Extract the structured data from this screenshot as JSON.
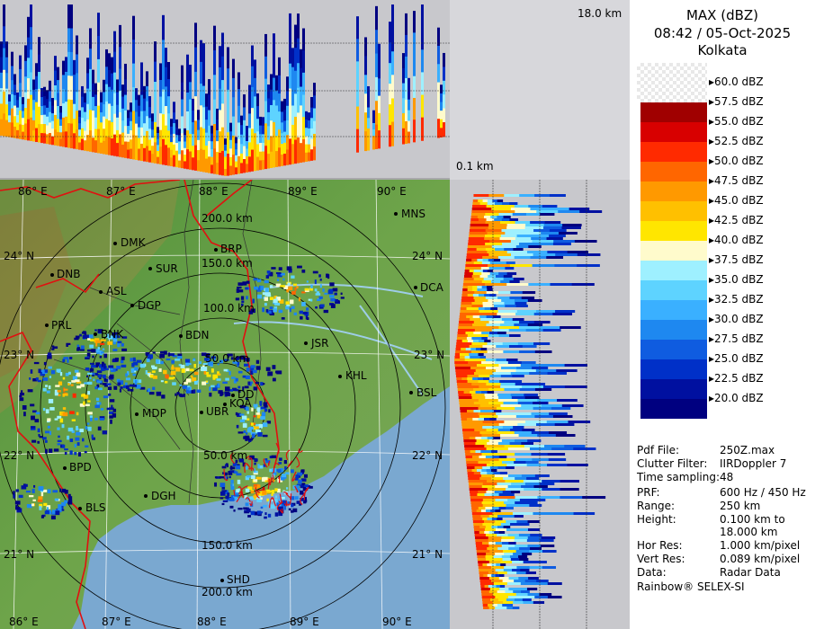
{
  "header": {
    "product": "MAX (dBZ)",
    "datetime": "08:42 / 05-Oct-2025",
    "station": "Kolkata"
  },
  "height_labels": {
    "top": "18.0 km",
    "bottom": "0.1 km"
  },
  "colors": {
    "c60": "#ffffff",
    "c575": "#a00000",
    "c55": "#d80000",
    "c525": "#ff2a00",
    "c50": "#ff6600",
    "c475": "#ff9900",
    "c45": "#ffc000",
    "c425": "#ffe600",
    "c40": "#fffbcc",
    "c375": "#9ef0ff",
    "c35": "#5ed3ff",
    "c325": "#3ab0ff",
    "c30": "#1e88f0",
    "c275": "#0f5ce0",
    "c25": "#0030c8",
    "c225": "#0010a0",
    "c20": "#000080",
    "land": "#5a9a3c",
    "sea": "#6fa0c8",
    "border": "#e01010"
  },
  "scale": [
    {
      "label": "60.0 dBZ",
      "color": "#ffffff"
    },
    {
      "label": "57.5 dBZ",
      "color": "#a00000"
    },
    {
      "label": "55.0 dBZ",
      "color": "#d80000"
    },
    {
      "label": "52.5 dBZ",
      "color": "#ff2a00"
    },
    {
      "label": "50.0 dBZ",
      "color": "#ff6600"
    },
    {
      "label": "47.5 dBZ",
      "color": "#ff9900"
    },
    {
      "label": "45.0 dBZ",
      "color": "#ffc000"
    },
    {
      "label": "42.5 dBZ",
      "color": "#ffe600"
    },
    {
      "label": "40.0 dBZ",
      "color": "#fffbcc"
    },
    {
      "label": "37.5 dBZ",
      "color": "#9ef0ff"
    },
    {
      "label": "35.0 dBZ",
      "color": "#5ed3ff"
    },
    {
      "label": "32.5 dBZ",
      "color": "#3ab0ff"
    },
    {
      "label": "30.0 dBZ",
      "color": "#1e88f0"
    },
    {
      "label": "27.5 dBZ",
      "color": "#0f5ce0"
    },
    {
      "label": "25.0 dBZ",
      "color": "#0030c8"
    },
    {
      "label": "22.5 dBZ",
      "color": "#0010a0"
    },
    {
      "label": "20.0 dBZ",
      "color": "#000080"
    }
  ],
  "info": [
    {
      "key": "Pdf File:",
      "value": "250Z.max"
    },
    {
      "key": "Clutter Filter:",
      "value": "IIRDoppler 7"
    },
    {
      "key": "Time sampling:",
      "value": "48"
    },
    {
      "key": "PRF:",
      "value": "600 Hz / 450 Hz"
    },
    {
      "key": "Range:",
      "value": "250 km"
    },
    {
      "key": "Height:",
      "value": "0.100 km to"
    },
    {
      "key": "",
      "value": "18.000 km"
    },
    {
      "key": "Hor Res:",
      "value": "1.000 km/pixel"
    },
    {
      "key": "Vert Res:",
      "value": "0.089 km/pixel"
    },
    {
      "key": "Data:",
      "value": "Radar Data"
    }
  ],
  "footer": "Rainbow® SELEX-SI",
  "map": {
    "lon_top": [
      "86° E",
      "87° E",
      "88° E",
      "89° E",
      "90° E"
    ],
    "lon_bottom": [
      "86° E",
      "87° E",
      "88° E",
      "89° E",
      "90° E"
    ],
    "lat_left": [
      "24° N",
      "23° N",
      "22° N",
      "21° N"
    ],
    "lat_right": [
      "24° N",
      "23° N",
      "22° N",
      "21° N"
    ],
    "range_rings": [
      "50.0 km",
      "100.0 km",
      "150.0 km",
      "200.0 km"
    ],
    "range_rings_lower": [
      "150.0 km",
      "200.0 km"
    ],
    "stations": [
      {
        "name": "MNS"
      },
      {
        "name": "DMK"
      },
      {
        "name": "BRP"
      },
      {
        "name": "DNB"
      },
      {
        "name": "SUR"
      },
      {
        "name": "ASL"
      },
      {
        "name": "DGP"
      },
      {
        "name": "DCA"
      },
      {
        "name": "PRL"
      },
      {
        "name": "BNK"
      },
      {
        "name": "BDN"
      },
      {
        "name": "JSR"
      },
      {
        "name": "KHL"
      },
      {
        "name": "BSL"
      },
      {
        "name": "DD"
      },
      {
        "name": "KOA"
      },
      {
        "name": "MDP"
      },
      {
        "name": "UBR"
      },
      {
        "name": "BPD"
      },
      {
        "name": "DGH"
      },
      {
        "name": "BLS"
      },
      {
        "name": "SHD"
      }
    ]
  }
}
